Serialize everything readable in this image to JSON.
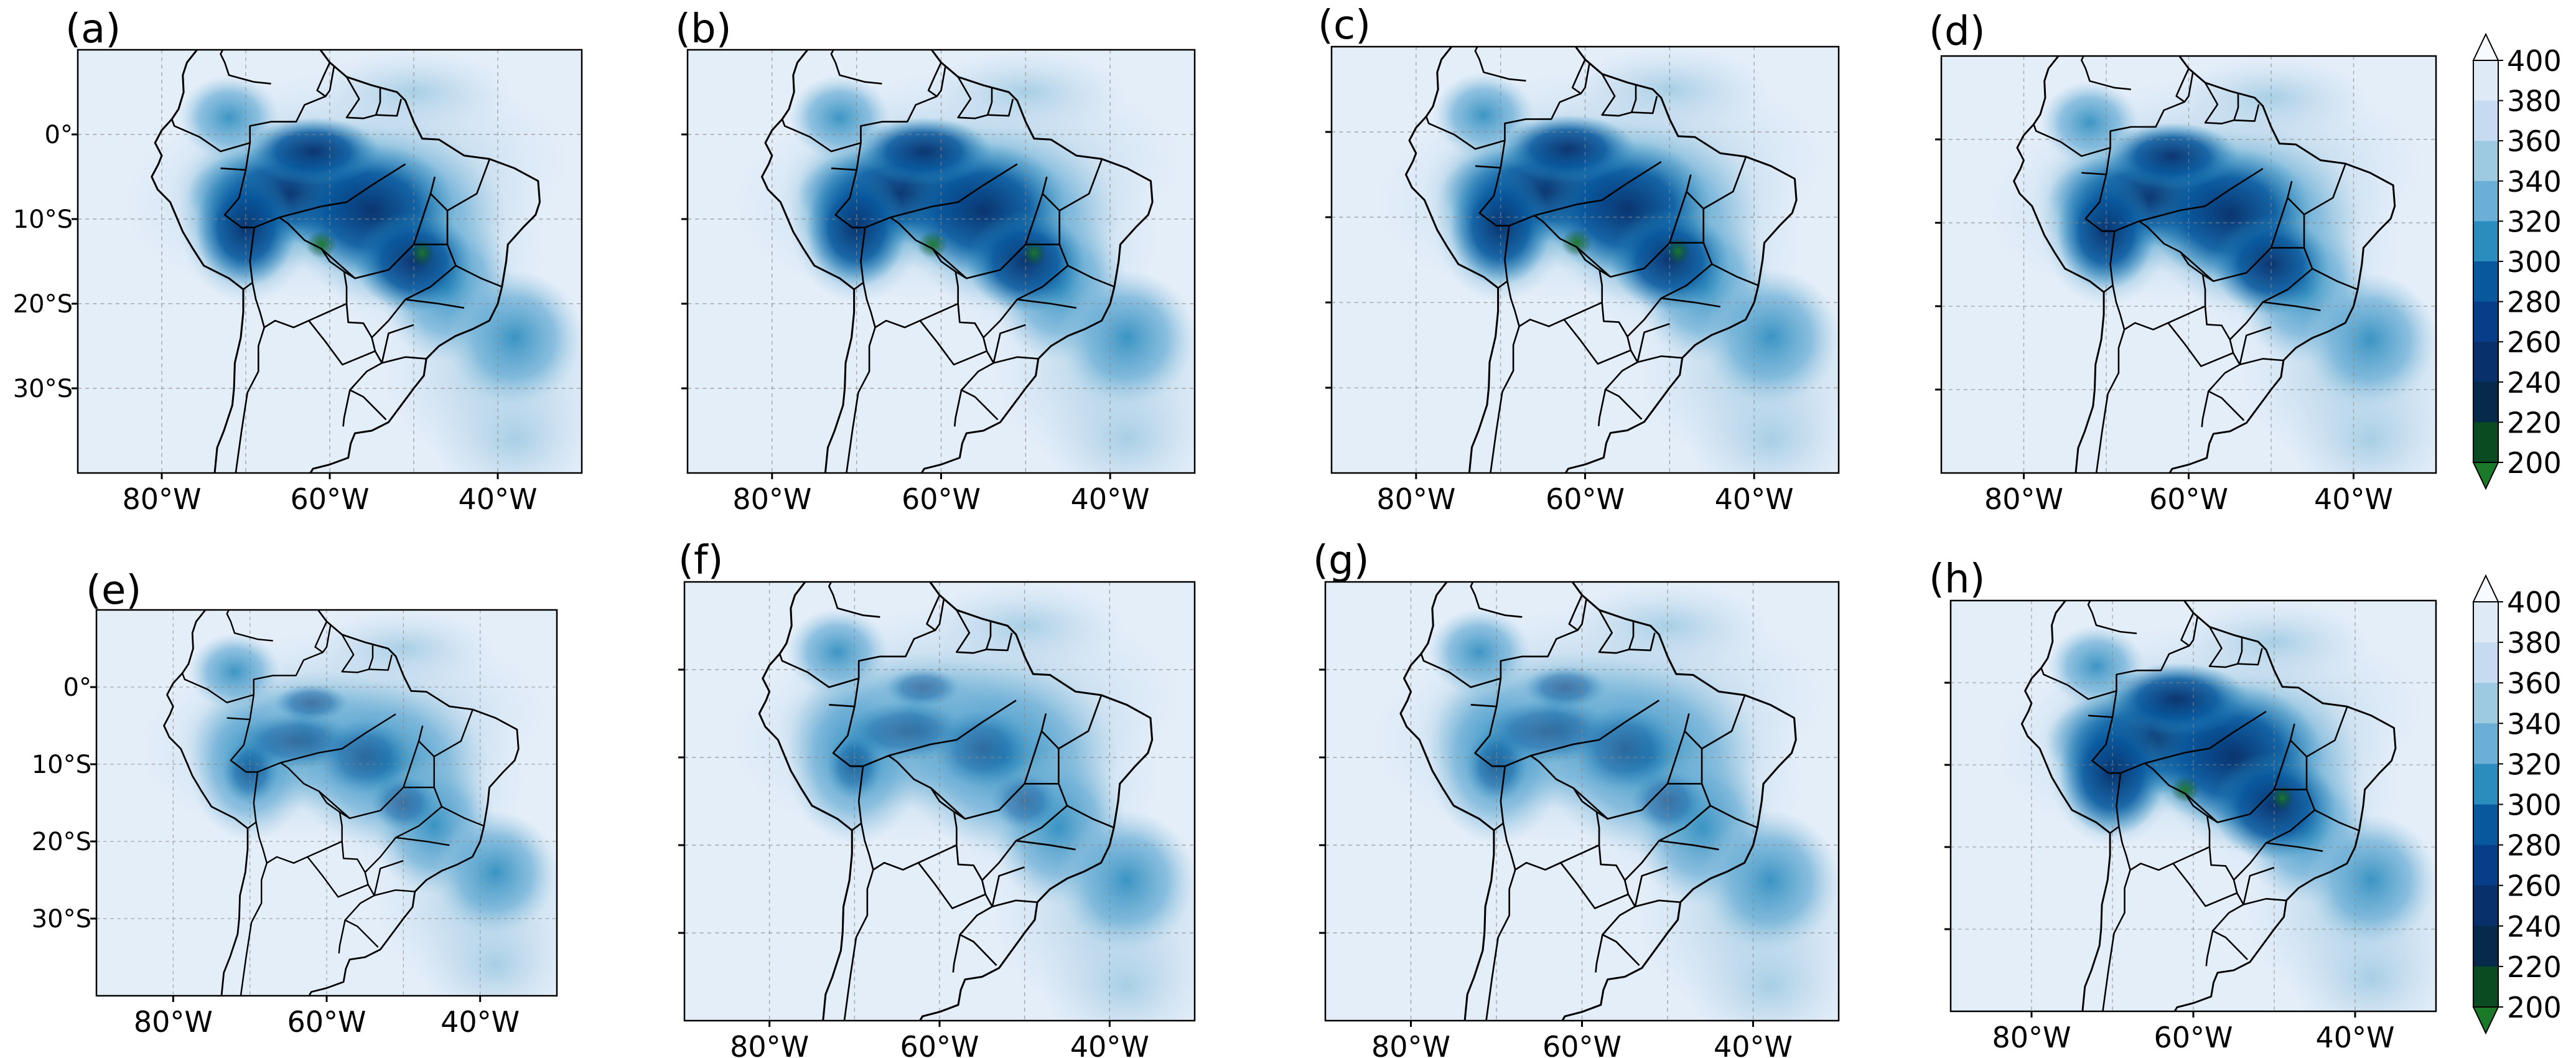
{
  "figure": {
    "panels": [
      {
        "label": "(a)",
        "show_lat_labels": true
      },
      {
        "label": "(b)",
        "show_lat_labels": false
      },
      {
        "label": "(c)",
        "show_lat_labels": false
      },
      {
        "label": "(d)",
        "show_lat_labels": false
      },
      {
        "label": "(e)",
        "show_lat_labels": true
      },
      {
        "label": "(f)",
        "show_lat_labels": false
      },
      {
        "label": "(g)",
        "show_lat_labels": false
      },
      {
        "label": "(h)",
        "show_lat_labels": false
      }
    ],
    "lon_tick_labels": [
      "80°W",
      "60°W",
      "40°W"
    ],
    "lat_tick_labels": [
      "0°",
      "10°S",
      "20°S",
      "30°S"
    ],
    "colorbar": {
      "ticks": [
        "400",
        "380",
        "360",
        "340",
        "320",
        "300",
        "280",
        "260",
        "240",
        "220",
        "200"
      ],
      "colors": [
        "#f7fbff",
        "#deebf7",
        "#c6dbef",
        "#9ecae1",
        "#6baed6",
        "#2b8cbe",
        "#08589e",
        "#083d8a",
        "#08306b",
        "#052a4a",
        "#0b4b22",
        "#1b7a2a"
      ]
    }
  },
  "chart_data": {
    "type": "heatmap",
    "description_variable": "",
    "units": "",
    "value_range": [
      200,
      400
    ],
    "colorbar_levels": [
      200,
      220,
      240,
      260,
      280,
      300,
      320,
      340,
      360,
      380,
      400
    ],
    "colorbar_extend": "both",
    "x_ticks": [
      "80°W",
      "60°W",
      "40°W"
    ],
    "y_ticks": [
      "0°",
      "10°S",
      "20°S",
      "30°S"
    ],
    "extent_lon": [
      -90,
      -30
    ],
    "extent_lat": [
      -40,
      10
    ],
    "panel_labels": [
      "(a)",
      "(b)",
      "(c)",
      "(d)",
      "(e)",
      "(f)",
      "(g)",
      "(h)"
    ]
  }
}
